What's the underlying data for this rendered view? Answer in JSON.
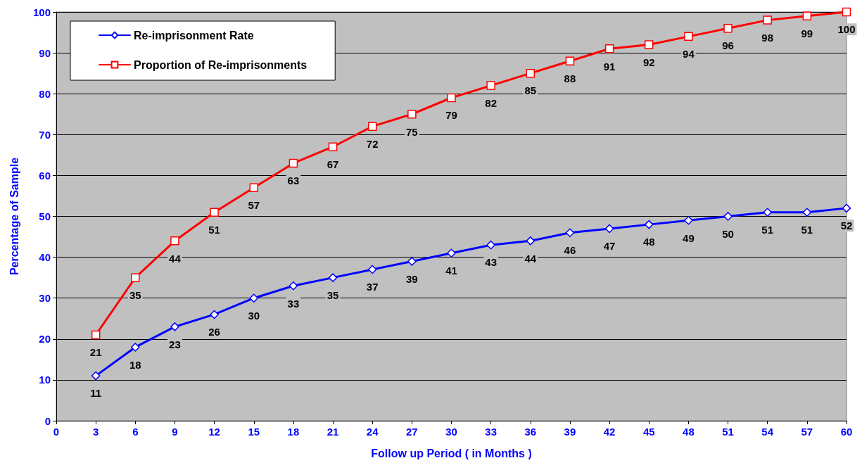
{
  "chart_data": {
    "type": "line",
    "xlabel": "Follow up Period ( in Months )",
    "ylabel": "Percentage of Sample",
    "x": [
      3,
      6,
      9,
      12,
      15,
      18,
      21,
      24,
      27,
      30,
      33,
      36,
      39,
      42,
      45,
      48,
      51,
      54,
      57,
      60
    ],
    "series": [
      {
        "name": "Re-imprisonment Rate",
        "color": "#0000ff",
        "marker": "diamond",
        "values": [
          11,
          18,
          23,
          26,
          30,
          33,
          35,
          37,
          39,
          41,
          43,
          44,
          46,
          47,
          48,
          49,
          50,
          51,
          51,
          52
        ]
      },
      {
        "name": "Proportion of Re-imprisonments",
        "color": "#ff0000",
        "marker": "square",
        "values": [
          21,
          35,
          44,
          51,
          57,
          63,
          67,
          72,
          75,
          79,
          82,
          85,
          88,
          91,
          92,
          94,
          96,
          98,
          99,
          100
        ]
      }
    ],
    "xlim": [
      0,
      60
    ],
    "xticks": [
      0,
      3,
      6,
      9,
      12,
      15,
      18,
      21,
      24,
      27,
      30,
      33,
      36,
      39,
      42,
      45,
      48,
      51,
      54,
      57,
      60
    ],
    "ylim": [
      0,
      100
    ],
    "yticks": [
      0,
      10,
      20,
      30,
      40,
      50,
      60,
      70,
      80,
      90,
      100
    ],
    "grid": "y",
    "legend": "top left",
    "data_labels": true,
    "line_style": "solid"
  }
}
